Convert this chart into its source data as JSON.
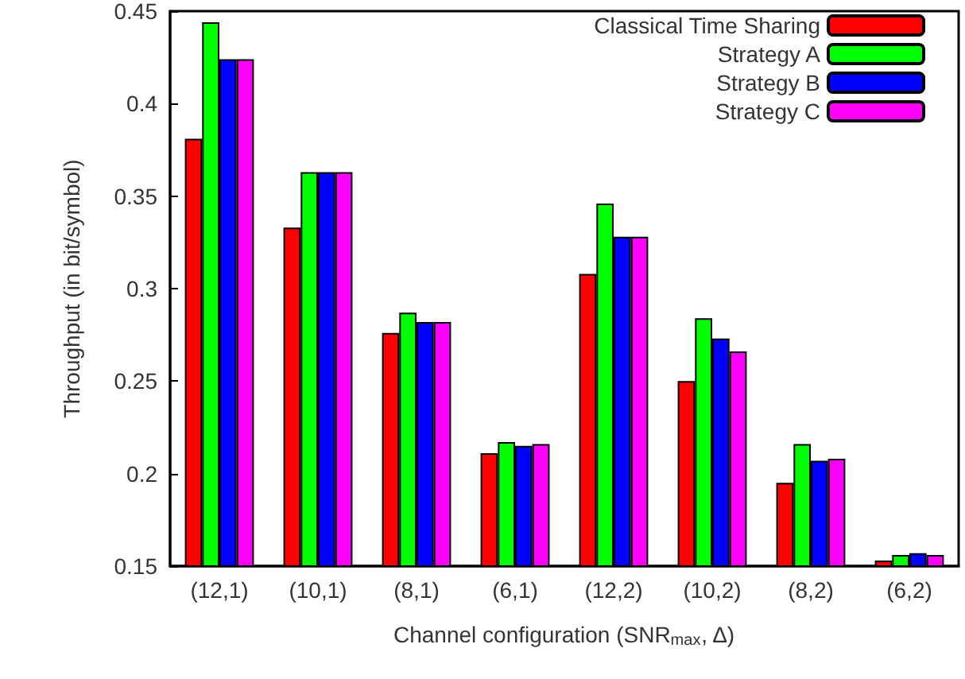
{
  "chart_data": {
    "type": "bar",
    "xlabel": "Channel configuration (SNR$_{max}$, Δ)",
    "ylabel": "Throughput (in bit/symbol)",
    "categories": [
      "(12,1)",
      "(10,1)",
      "(8,1)",
      "(6,1)",
      "(12,2)",
      "(10,2)",
      "(8,2)",
      "(6,2)"
    ],
    "series": [
      {
        "name": "Classical Time Sharing",
        "color": "#ff0000",
        "values": [
          0.381,
          0.333,
          0.276,
          0.211,
          0.308,
          0.25,
          0.195,
          0.153
        ]
      },
      {
        "name": "Strategy A",
        "color": "#00ff00",
        "values": [
          0.444,
          0.363,
          0.287,
          0.217,
          0.346,
          0.284,
          0.216,
          0.156
        ]
      },
      {
        "name": "Strategy B",
        "color": "#0000ff",
        "values": [
          0.424,
          0.363,
          0.282,
          0.215,
          0.328,
          0.273,
          0.207,
          0.157
        ]
      },
      {
        "name": "Strategy C",
        "color": "#ff00ff",
        "values": [
          0.424,
          0.363,
          0.282,
          0.216,
          0.328,
          0.266,
          0.208,
          0.156
        ]
      }
    ],
    "ylim": [
      0.15,
      0.45
    ],
    "yticks": [
      0.15,
      0.2,
      0.25,
      0.3,
      0.35,
      0.4,
      0.45
    ],
    "grid": false,
    "legend": "top right"
  }
}
